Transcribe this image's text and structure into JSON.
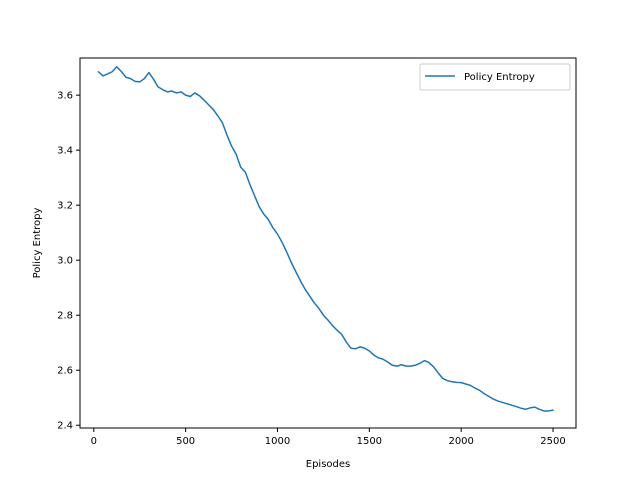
{
  "chart_data": {
    "type": "line",
    "title": "",
    "xlabel": "Episodes",
    "ylabel": "Policy Entropy",
    "xlim": [
      -75,
      2625
    ],
    "ylim": [
      2.39,
      3.735
    ],
    "xticks": [
      0,
      500,
      1000,
      1500,
      2000,
      2500
    ],
    "xtick_labels": [
      "0",
      "500",
      "1000",
      "1500",
      "2000",
      "2500"
    ],
    "yticks": [
      2.4,
      2.6,
      2.8,
      3.0,
      3.2,
      3.4,
      3.6
    ],
    "ytick_labels": [
      "2.4",
      "2.6",
      "2.8",
      "3.0",
      "3.2",
      "3.4",
      "3.6"
    ],
    "grid": false,
    "legend_position": "top-right",
    "series": [
      {
        "name": "Policy Entropy",
        "color": "#1f77b4",
        "x": [
          25,
          50,
          75,
          100,
          125,
          150,
          175,
          200,
          225,
          250,
          275,
          300,
          325,
          350,
          375,
          400,
          425,
          450,
          475,
          500,
          525,
          550,
          575,
          600,
          625,
          650,
          675,
          700,
          725,
          750,
          775,
          800,
          825,
          850,
          875,
          900,
          925,
          950,
          975,
          1000,
          1025,
          1050,
          1075,
          1100,
          1125,
          1150,
          1175,
          1200,
          1225,
          1250,
          1275,
          1300,
          1325,
          1350,
          1375,
          1400,
          1425,
          1450,
          1475,
          1500,
          1525,
          1550,
          1575,
          1600,
          1625,
          1650,
          1675,
          1700,
          1725,
          1750,
          1775,
          1800,
          1825,
          1850,
          1875,
          1900,
          1925,
          1950,
          1975,
          2000,
          2025,
          2050,
          2075,
          2100,
          2125,
          2150,
          2175,
          2200,
          2225,
          2250,
          2275,
          2300,
          2325,
          2350,
          2375,
          2400,
          2425,
          2450,
          2475,
          2500
        ],
        "y": [
          3.685,
          3.67,
          3.677,
          3.685,
          3.703,
          3.686,
          3.665,
          3.66,
          3.65,
          3.648,
          3.66,
          3.682,
          3.658,
          3.63,
          3.62,
          3.612,
          3.615,
          3.608,
          3.612,
          3.6,
          3.595,
          3.608,
          3.598,
          3.582,
          3.565,
          3.548,
          3.525,
          3.5,
          3.455,
          3.415,
          3.385,
          3.338,
          3.32,
          3.275,
          3.235,
          3.195,
          3.168,
          3.148,
          3.118,
          3.095,
          3.065,
          3.03,
          2.992,
          2.958,
          2.925,
          2.895,
          2.87,
          2.845,
          2.825,
          2.8,
          2.782,
          2.762,
          2.745,
          2.73,
          2.702,
          2.68,
          2.678,
          2.685,
          2.68,
          2.67,
          2.655,
          2.645,
          2.64,
          2.63,
          2.618,
          2.615,
          2.62,
          2.615,
          2.615,
          2.618,
          2.625,
          2.635,
          2.628,
          2.612,
          2.59,
          2.57,
          2.562,
          2.558,
          2.556,
          2.555,
          2.55,
          2.545,
          2.535,
          2.527,
          2.515,
          2.505,
          2.495,
          2.488,
          2.483,
          2.478,
          2.473,
          2.468,
          2.462,
          2.458,
          2.463,
          2.466,
          2.458,
          2.452,
          2.452,
          2.455
        ]
      }
    ]
  }
}
